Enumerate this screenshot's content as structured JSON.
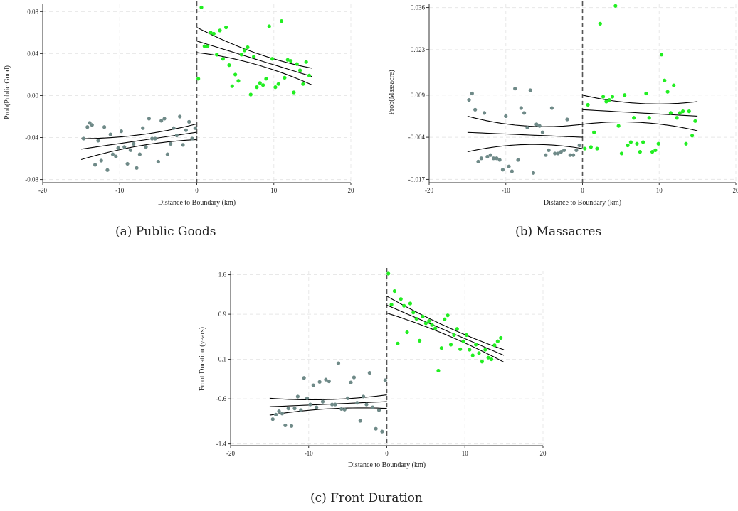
{
  "figure": {
    "captions": [
      "(a)  Public Goods",
      "(b)  Massacres",
      "(c)  Front Duration"
    ]
  },
  "colors": {
    "left_points": "#6f8a88",
    "right_points": "#22ee22",
    "lines": "#000000",
    "grid": "#e8e8e8"
  },
  "chart_data": [
    {
      "type": "scatter",
      "title": "",
      "xlabel": "Distance to Boundary (km)",
      "ylabel": "Prob(Public Good)",
      "xlim": [
        -20,
        20
      ],
      "ylim": [
        -0.083,
        0.087
      ],
      "xticks": [
        -20,
        -10,
        0,
        10,
        20
      ],
      "yticks": [
        -0.08,
        -0.04,
        0.0,
        0.04,
        0.08
      ],
      "ytick_labels": [
        "-0.08",
        "-0.04",
        "0.00",
        "0.04",
        "0.08"
      ],
      "grid": true,
      "cutoff": 0,
      "series": [
        {
          "side": "left",
          "x": [
            -14.7,
            -14.2,
            -13.9,
            -13.6,
            -13.2,
            -12.8,
            -12.4,
            -12.0,
            -11.6,
            -11.2,
            -10.9,
            -10.5,
            -10.2,
            -9.8,
            -9.4,
            -9.0,
            -8.6,
            -8.2,
            -7.8,
            -7.4,
            -7.0,
            -6.6,
            -6.2,
            -5.8,
            -5.4,
            -5.0,
            -4.6,
            -4.2,
            -3.8,
            -3.4,
            -3.0,
            -2.6,
            -2.2,
            -1.8,
            -1.4,
            -1.0,
            -0.6,
            -0.2
          ],
          "y": [
            -0.041,
            -0.03,
            -0.026,
            -0.028,
            -0.066,
            -0.043,
            -0.062,
            -0.03,
            -0.071,
            -0.037,
            -0.056,
            -0.058,
            -0.05,
            -0.034,
            -0.049,
            -0.065,
            -0.052,
            -0.046,
            -0.069,
            -0.056,
            -0.031,
            -0.049,
            -0.022,
            -0.041,
            -0.041,
            -0.063,
            -0.024,
            -0.022,
            -0.056,
            -0.046,
            -0.031,
            -0.038,
            -0.02,
            -0.047,
            -0.033,
            -0.025,
            -0.041,
            -0.031
          ]
        },
        {
          "side": "right",
          "x": [
            0.2,
            0.6,
            1.0,
            1.4,
            1.8,
            2.2,
            2.6,
            3.0,
            3.4,
            3.8,
            4.2,
            4.6,
            5.0,
            5.4,
            5.8,
            6.2,
            6.6,
            7.0,
            7.4,
            7.8,
            8.2,
            8.6,
            9.0,
            9.4,
            9.8,
            10.2,
            10.6,
            11.0,
            11.4,
            11.8,
            12.2,
            12.6,
            13.0,
            13.4,
            13.8,
            14.2,
            14.6
          ],
          "y": [
            0.016,
            0.084,
            0.047,
            0.047,
            0.06,
            0.059,
            0.039,
            0.062,
            0.035,
            0.065,
            0.029,
            0.009,
            0.02,
            0.014,
            0.039,
            0.043,
            0.046,
            0.001,
            0.037,
            0.008,
            0.012,
            0.01,
            0.016,
            0.066,
            0.035,
            0.008,
            0.011,
            0.071,
            0.017,
            0.034,
            0.033,
            0.003,
            0.03,
            0.024,
            0.011,
            0.032,
            0.019
          ]
        }
      ],
      "fit": {
        "left": {
          "x": [
            -15,
            0
          ],
          "center": [
            -0.051,
            -0.035
          ],
          "upper": [
            -0.041,
            -0.027
          ],
          "lower": [
            -0.061,
            -0.042
          ]
        },
        "right": {
          "x": [
            0,
            15
          ],
          "center": [
            0.052,
            0.018
          ],
          "upper": [
            0.065,
            0.026
          ],
          "lower": [
            0.041,
            0.01
          ]
        }
      }
    },
    {
      "type": "scatter",
      "title": "",
      "xlabel": "Distance to Boundary (km)",
      "ylabel": "Prob(Massacre)",
      "xlim": [
        -20,
        20
      ],
      "ylim": [
        -0.018,
        0.037
      ],
      "xticks": [
        -20,
        -10,
        0,
        10,
        20
      ],
      "yticks": [
        -0.017,
        -0.004,
        0.009,
        0.023,
        0.036
      ],
      "ytick_labels": [
        "-0.017",
        "-0.004",
        "0.009",
        "0.023",
        "0.036"
      ],
      "grid": true,
      "cutoff": 0,
      "series": [
        {
          "side": "left",
          "x": [
            -14.8,
            -14.4,
            -14.0,
            -13.6,
            -13.2,
            -12.8,
            -12.4,
            -12.0,
            -11.6,
            -11.2,
            -10.8,
            -10.4,
            -10.0,
            -9.6,
            -9.2,
            -8.8,
            -8.4,
            -8.0,
            -7.6,
            -7.2,
            -6.8,
            -6.4,
            -6.0,
            -5.6,
            -5.2,
            -4.8,
            -4.4,
            -4.0,
            -3.6,
            -3.2,
            -2.8,
            -2.4,
            -2.0,
            -1.6,
            -1.2,
            -0.8,
            -0.4
          ],
          "y": [
            0.0075,
            0.0095,
            0.0045,
            -0.0115,
            -0.0105,
            0.0035,
            -0.01,
            -0.0095,
            -0.0105,
            -0.0105,
            -0.011,
            -0.014,
            0.0025,
            -0.013,
            -0.0145,
            0.011,
            -0.011,
            0.005,
            0.0035,
            -0.001,
            0.0105,
            -0.015,
            0.0,
            -0.0005,
            -0.0025,
            -0.0095,
            -0.008,
            0.005,
            -0.009,
            -0.009,
            -0.0085,
            -0.008,
            0.0015,
            -0.0095,
            -0.0095,
            -0.008,
            -0.0065
          ]
        },
        {
          "side": "right",
          "x": [
            0.3,
            0.7,
            1.1,
            1.5,
            1.9,
            2.3,
            2.7,
            3.1,
            3.5,
            3.9,
            4.3,
            4.7,
            5.1,
            5.5,
            5.9,
            6.3,
            6.7,
            7.1,
            7.5,
            7.9,
            8.3,
            8.7,
            9.1,
            9.5,
            9.9,
            10.3,
            10.7,
            11.1,
            11.5,
            11.9,
            12.3,
            12.7,
            13.1,
            13.5,
            13.9,
            14.3,
            14.7
          ],
          "y": [
            -0.0075,
            0.006,
            -0.007,
            -0.0025,
            -0.0075,
            0.031,
            0.0085,
            0.007,
            0.0075,
            0.0085,
            0.0365,
            -0.0005,
            -0.009,
            0.009,
            -0.0065,
            -0.0055,
            0.002,
            -0.006,
            -0.0085,
            -0.0055,
            0.0095,
            0.002,
            -0.0085,
            -0.008,
            -0.006,
            0.0215,
            0.0135,
            0.01,
            0.0035,
            0.012,
            0.002,
            0.0035,
            0.004,
            -0.006,
            0.004,
            -0.0035,
            0.001
          ]
        }
      ],
      "fit": {
        "left": {
          "x": [
            -15,
            0
          ],
          "center": [
            -0.0025,
            -0.004
          ],
          "upper": [
            0.0025,
            0.0
          ],
          "lower": [
            -0.0085,
            -0.0075
          ]
        },
        "right": {
          "x": [
            0,
            15
          ],
          "center": [
            0.0045,
            0.0025
          ],
          "upper": [
            0.009,
            0.007
          ],
          "lower": [
            0.0,
            -0.002
          ]
        }
      }
    },
    {
      "type": "scatter",
      "title": "",
      "xlabel": "Distance to Boundary (km)",
      "ylabel": "Front Duration (years)",
      "xlim": [
        -20,
        20
      ],
      "ylim": [
        -1.43,
        1.67
      ],
      "xticks": [
        -20,
        -10,
        0,
        10,
        20
      ],
      "yticks": [
        -1.4,
        -0.6,
        0.1,
        0.9,
        1.6
      ],
      "ytick_labels": [
        "-1.4",
        "-0.6",
        "0.1",
        "0.9",
        "1.6"
      ],
      "grid": true,
      "cutoff": 0,
      "series": [
        {
          "side": "left",
          "x": [
            -14.6,
            -14.2,
            -13.8,
            -13.4,
            -13.0,
            -12.6,
            -12.2,
            -11.8,
            -11.4,
            -11.0,
            -10.6,
            -10.2,
            -9.8,
            -9.4,
            -9.0,
            -8.6,
            -8.2,
            -7.8,
            -7.4,
            -7.0,
            -6.6,
            -6.2,
            -5.8,
            -5.4,
            -5.0,
            -4.6,
            -4.2,
            -3.8,
            -3.4,
            -3.0,
            -2.6,
            -2.2,
            -1.8,
            -1.4,
            -1.0,
            -0.6,
            -0.2
          ],
          "y": [
            -0.96,
            -0.88,
            -0.82,
            -0.86,
            -1.07,
            -0.77,
            -1.08,
            -0.77,
            -0.56,
            -0.8,
            -0.23,
            -0.59,
            -0.7,
            -0.36,
            -0.75,
            -0.3,
            -0.65,
            -0.26,
            -0.29,
            -0.7,
            -0.7,
            0.03,
            -0.78,
            -0.79,
            -0.59,
            -0.31,
            -0.22,
            -0.67,
            -0.99,
            -0.56,
            -0.7,
            -0.14,
            -0.75,
            -1.13,
            -0.8,
            -1.18,
            -0.27
          ]
        },
        {
          "side": "right",
          "x": [
            0.2,
            0.6,
            1.0,
            1.4,
            1.8,
            2.2,
            2.6,
            3.0,
            3.4,
            3.8,
            4.2,
            4.6,
            5.0,
            5.4,
            5.8,
            6.2,
            6.6,
            7.0,
            7.4,
            7.8,
            8.2,
            8.6,
            9.0,
            9.4,
            9.8,
            10.2,
            10.6,
            11.0,
            11.4,
            11.8,
            12.2,
            12.6,
            13.0,
            13.4,
            13.8,
            14.2,
            14.6
          ],
          "y": [
            1.62,
            1.07,
            1.31,
            0.38,
            1.17,
            1.05,
            0.58,
            1.09,
            0.93,
            0.82,
            0.43,
            0.86,
            0.74,
            0.78,
            0.71,
            0.65,
            -0.1,
            0.3,
            0.81,
            0.88,
            0.36,
            0.53,
            0.64,
            0.28,
            0.42,
            0.53,
            0.27,
            0.17,
            0.36,
            0.21,
            0.06,
            0.27,
            0.13,
            0.1,
            0.35,
            0.42,
            0.48
          ]
        }
      ],
      "fit": {
        "left": {
          "x": [
            -15,
            0
          ],
          "center": [
            -0.74,
            -0.65
          ],
          "upper": [
            -0.59,
            -0.53
          ],
          "lower": [
            -0.89,
            -0.77
          ]
        },
        "right": {
          "x": [
            0,
            15
          ],
          "center": [
            1.06,
            0.17
          ],
          "upper": [
            1.22,
            0.27
          ],
          "lower": [
            0.92,
            0.05
          ]
        }
      }
    }
  ]
}
